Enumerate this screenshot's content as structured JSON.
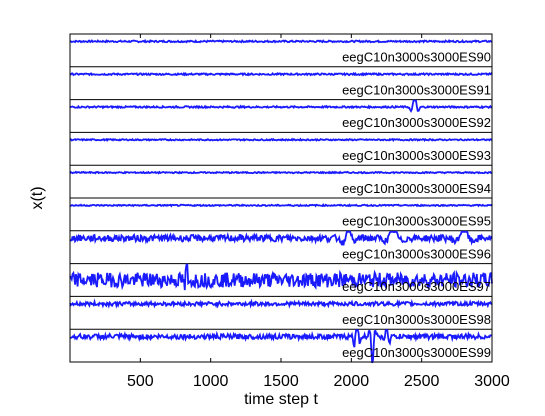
{
  "chart_data": {
    "type": "line",
    "xlabel": "time step t",
    "ylabel": "x(t)",
    "xlim": [
      0,
      3000
    ],
    "x_ticks": [
      "500",
      "1000",
      "1500",
      "2000",
      "2500",
      "3000"
    ],
    "x_tick_values": [
      500,
      1000,
      1500,
      2000,
      2500,
      3000
    ],
    "ylim_per_strip": [
      -1,
      1
    ],
    "line_color": "#1a1aff",
    "separator_color": "#000000",
    "series": [
      {
        "name": "eegC10n3000s3000ES90",
        "level": 0.55,
        "events": [],
        "noise": 0.05
      },
      {
        "name": "eegC10n3000s3000ES91",
        "level": 0.55,
        "events": [],
        "noise": 0.05
      },
      {
        "name": "eegC10n3000s3000ES92",
        "level": 0.55,
        "events": [
          {
            "t": 2450,
            "amp": 0.9,
            "width": 25
          }
        ],
        "noise": 0.05
      },
      {
        "name": "eegC10n3000s3000ES93",
        "level": 0.55,
        "events": [],
        "noise": 0.04
      },
      {
        "name": "eegC10n3000s3000ES94",
        "level": 0.55,
        "events": [],
        "noise": 0.04
      },
      {
        "name": "eegC10n3000s3000ES95",
        "level": 0.55,
        "events": [],
        "noise": 0.04
      },
      {
        "name": "eegC10n3000s3000ES96",
        "level": 0.55,
        "events": [
          {
            "t": 1980,
            "amp": 1.0,
            "width": 40
          },
          {
            "t": 2300,
            "amp": 0.5,
            "width": 60
          },
          {
            "t": 2800,
            "amp": 0.6,
            "width": 60
          }
        ],
        "noise": 0.2
      },
      {
        "name": "eegC10n3000s3000ES97",
        "level": 0.0,
        "events": [
          {
            "t": 830,
            "amp": 1.6,
            "width": 15
          }
        ],
        "noise": 0.45
      },
      {
        "name": "eegC10n3000s3000ES98",
        "level": 0.55,
        "events": [],
        "noise": 0.12
      },
      {
        "name": "eegC10n3000s3000ES99",
        "level": 0.55,
        "events": [
          {
            "t": 2040,
            "amp": 1.8,
            "width": 20
          },
          {
            "t": 2150,
            "amp": -1.6,
            "width": 20
          },
          {
            "t": 2250,
            "amp": 1.2,
            "width": 20
          }
        ],
        "noise": 0.15
      }
    ]
  }
}
